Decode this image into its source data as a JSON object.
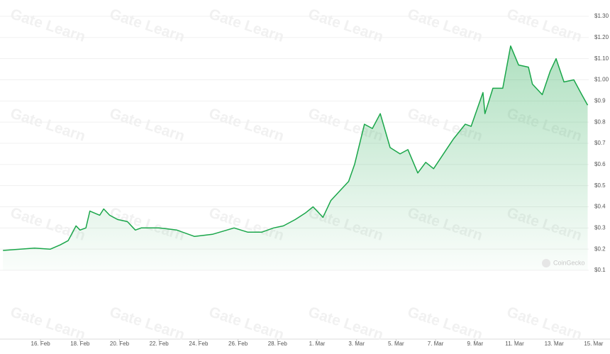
{
  "chart_data": {
    "type": "area-line",
    "color": "#1aa64a",
    "x": [
      45.1,
      46.7,
      47.5,
      48.0,
      48.4,
      48.8,
      49.0,
      49.3,
      49.5,
      50.0,
      50.2,
      50.5,
      50.9,
      51.4,
      51.8,
      52.1,
      53.0,
      53.9,
      54.8,
      55.7,
      56.8,
      57.5,
      58.2,
      58.8,
      59.3,
      59.9,
      60.4,
      60.8,
      61.3,
      61.7,
      62.2,
      62.6,
      62.9,
      63.4,
      63.8,
      64.2,
      64.7,
      65.2,
      65.6,
      66.1,
      66.5,
      66.9,
      67.4,
      67.9,
      68.5,
      68.8,
      69.4,
      69.5,
      69.9,
      70.4,
      70.8,
      71.2,
      71.7,
      71.9,
      72.4,
      72.8,
      73.1,
      73.5,
      74.0,
      74.4,
      74.7
    ],
    "values": [
      0.194,
      0.205,
      0.2,
      0.22,
      0.24,
      0.31,
      0.29,
      0.3,
      0.38,
      0.36,
      0.39,
      0.36,
      0.34,
      0.33,
      0.29,
      0.3,
      0.3,
      0.29,
      0.26,
      0.27,
      0.3,
      0.28,
      0.28,
      0.3,
      0.31,
      0.34,
      0.37,
      0.4,
      0.35,
      0.43,
      0.48,
      0.52,
      0.6,
      0.79,
      0.77,
      0.84,
      0.68,
      0.65,
      0.67,
      0.56,
      0.61,
      0.58,
      0.65,
      0.72,
      0.79,
      0.78,
      0.94,
      0.84,
      0.96,
      0.96,
      1.16,
      1.07,
      1.06,
      0.98,
      0.93,
      1.04,
      1.1,
      0.99,
      1.0,
      0.93,
      0.88
    ],
    "xlim": [
      44.95,
      75.83
    ],
    "xticks": [
      {
        "value": 47,
        "label": "16. Feb"
      },
      {
        "value": 49,
        "label": "18. Feb"
      },
      {
        "value": 51,
        "label": "20. Feb"
      },
      {
        "value": 53,
        "label": "22. Feb"
      },
      {
        "value": 55,
        "label": "24. Feb"
      },
      {
        "value": 57,
        "label": "26. Feb"
      },
      {
        "value": 59,
        "label": "28. Feb"
      },
      {
        "value": 61,
        "label": "1. Mar"
      },
      {
        "value": 63,
        "label": "3. Mar"
      },
      {
        "value": 65,
        "label": "5. Mar"
      },
      {
        "value": 67,
        "label": "7. Mar"
      },
      {
        "value": 69,
        "label": "9. Mar"
      },
      {
        "value": 71,
        "label": "11. Mar"
      },
      {
        "value": 73,
        "label": "13. Mar"
      },
      {
        "value": 75,
        "label": "15. Mar"
      }
    ],
    "ylim": [
      0.1,
      1.3
    ],
    "yticks": [
      {
        "value": 1.3,
        "label": "$1.30"
      },
      {
        "value": 1.2,
        "label": "$1.20"
      },
      {
        "value": 1.1,
        "label": "$1.10"
      },
      {
        "value": 1.0,
        "label": "$1.00"
      },
      {
        "value": 0.9,
        "label": "$0.9"
      },
      {
        "value": 0.8,
        "label": "$0.8"
      },
      {
        "value": 0.7,
        "label": "$0.7"
      },
      {
        "value": 0.6,
        "label": "$0.6"
      },
      {
        "value": 0.5,
        "label": "$0.5"
      },
      {
        "value": 0.4,
        "label": "$0.4"
      },
      {
        "value": 0.3,
        "label": "$0.3"
      },
      {
        "value": 0.2,
        "label": "$0.2"
      },
      {
        "value": 0.1,
        "label": "$0.1"
      }
    ],
    "grid": true,
    "watermarks": [
      "CoinGecko",
      "Gate Learn"
    ]
  }
}
